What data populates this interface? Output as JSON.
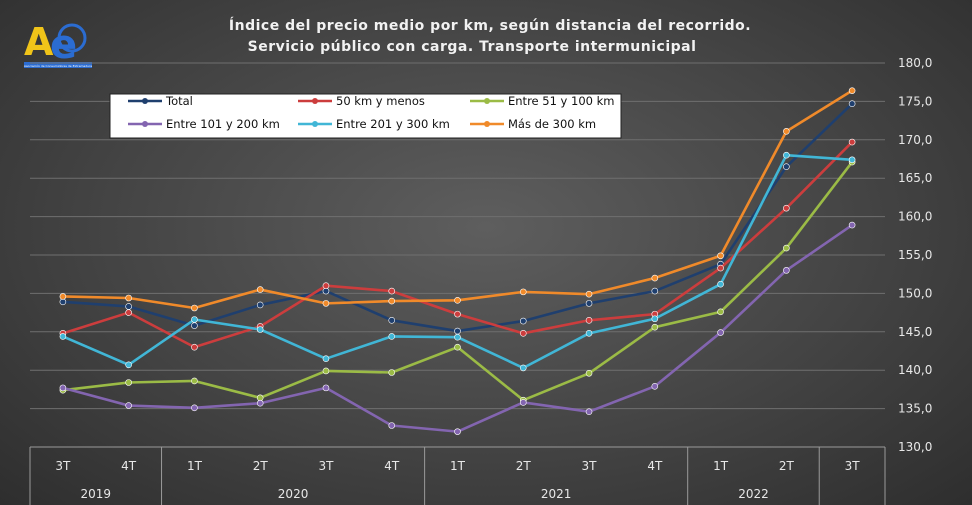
{
  "logo": {
    "letter_a": "A",
    "letter_e": "e",
    "caption": "Asociación de Consumidores de Extremadura"
  },
  "chart_data": {
    "type": "line",
    "title": [
      "Índice del precio medio por km, según distancia del recorrido.",
      "Servicio público con carga. Transporte intermunicipal"
    ],
    "x": [
      "3T",
      "4T",
      "1T",
      "2T",
      "3T",
      "4T",
      "1T",
      "2T",
      "3T",
      "4T",
      "1T",
      "2T",
      "3T"
    ],
    "year_groups": [
      {
        "label": "2019",
        "span": 2
      },
      {
        "label": "2020",
        "span": 4
      },
      {
        "label": "2021",
        "span": 4
      },
      {
        "label": "2022",
        "span": 2
      },
      {
        "label": "",
        "span": 1
      }
    ],
    "ylim": [
      130,
      180
    ],
    "yticks": [
      "130,0",
      "135,0",
      "140,0",
      "145,0",
      "150,0",
      "155,0",
      "160,0",
      "165,0",
      "170,0",
      "175,0",
      "180,0"
    ],
    "legend_position": "top-left",
    "series": [
      {
        "name": "Total",
        "color": "#1f3f6e",
        "values": [
          148.9,
          148.3,
          145.8,
          148.5,
          150.3,
          146.5,
          145.1,
          146.4,
          148.7,
          150.3,
          153.8,
          166.5,
          174.7
        ]
      },
      {
        "name": "50 km y menos",
        "color": "#cc3d3d",
        "values": [
          144.8,
          147.5,
          143.0,
          145.7,
          151.0,
          150.3,
          147.3,
          144.8,
          146.5,
          147.3,
          153.3,
          161.1,
          169.7
        ]
      },
      {
        "name": "Entre 51 y 100 km",
        "color": "#9bbb46",
        "values": [
          137.4,
          138.4,
          138.6,
          136.4,
          139.9,
          139.7,
          143.0,
          136.1,
          139.6,
          145.6,
          147.6,
          155.9,
          167.1
        ]
      },
      {
        "name": "Entre 101 y 200 km",
        "color": "#8365b0",
        "values": [
          137.7,
          135.4,
          135.1,
          135.7,
          137.7,
          132.8,
          132.0,
          135.8,
          134.6,
          137.9,
          144.9,
          153.0,
          158.9
        ]
      },
      {
        "name": "Entre 201 y 300 km",
        "color": "#41b6d6",
        "values": [
          144.4,
          140.7,
          146.6,
          145.3,
          141.5,
          144.4,
          144.3,
          140.3,
          144.8,
          146.7,
          151.2,
          168.0,
          167.4
        ]
      },
      {
        "name": "Más de 300 km",
        "color": "#f08a2a",
        "values": [
          149.6,
          149.4,
          148.1,
          150.5,
          148.7,
          149.0,
          149.1,
          150.2,
          149.9,
          152.0,
          154.9,
          171.1,
          176.4
        ]
      }
    ]
  }
}
